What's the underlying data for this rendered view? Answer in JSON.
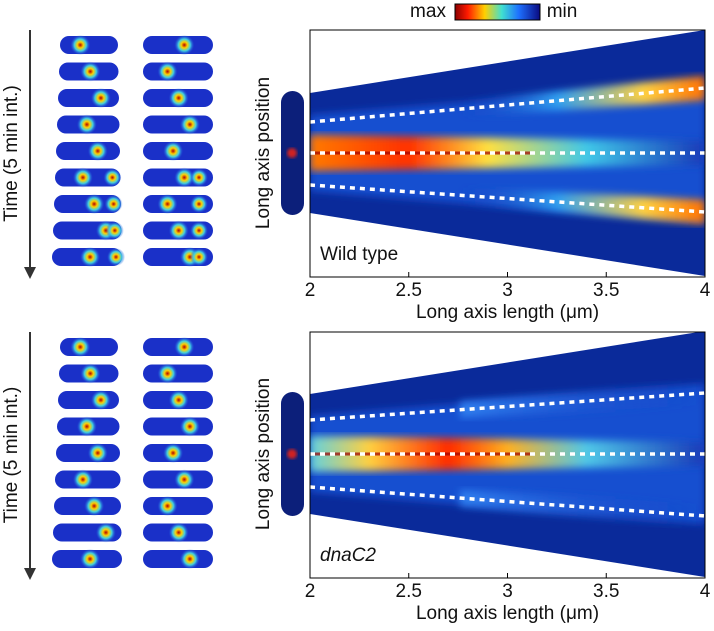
{
  "colorbar": {
    "high": "max",
    "low": "min"
  },
  "chart_data": [
    {
      "type": "heatmap",
      "time_label": "Time (5 min int.)",
      "ylabel": "Long axis position",
      "strain": "Wild type",
      "xlabel": "Long axis length (μm)",
      "xlim": [
        2,
        4
      ],
      "xticks": [
        2,
        2.5,
        3,
        3.5,
        4
      ]
    },
    {
      "type": "heatmap",
      "time_label": "Time (5 min int.)",
      "ylabel": "Long axis position",
      "strain": "dnaC2",
      "xlabel": "Long axis length (μm)",
      "xlim": [
        2,
        4
      ],
      "xticks": [
        2,
        2.5,
        3,
        3.5,
        4
      ]
    }
  ]
}
